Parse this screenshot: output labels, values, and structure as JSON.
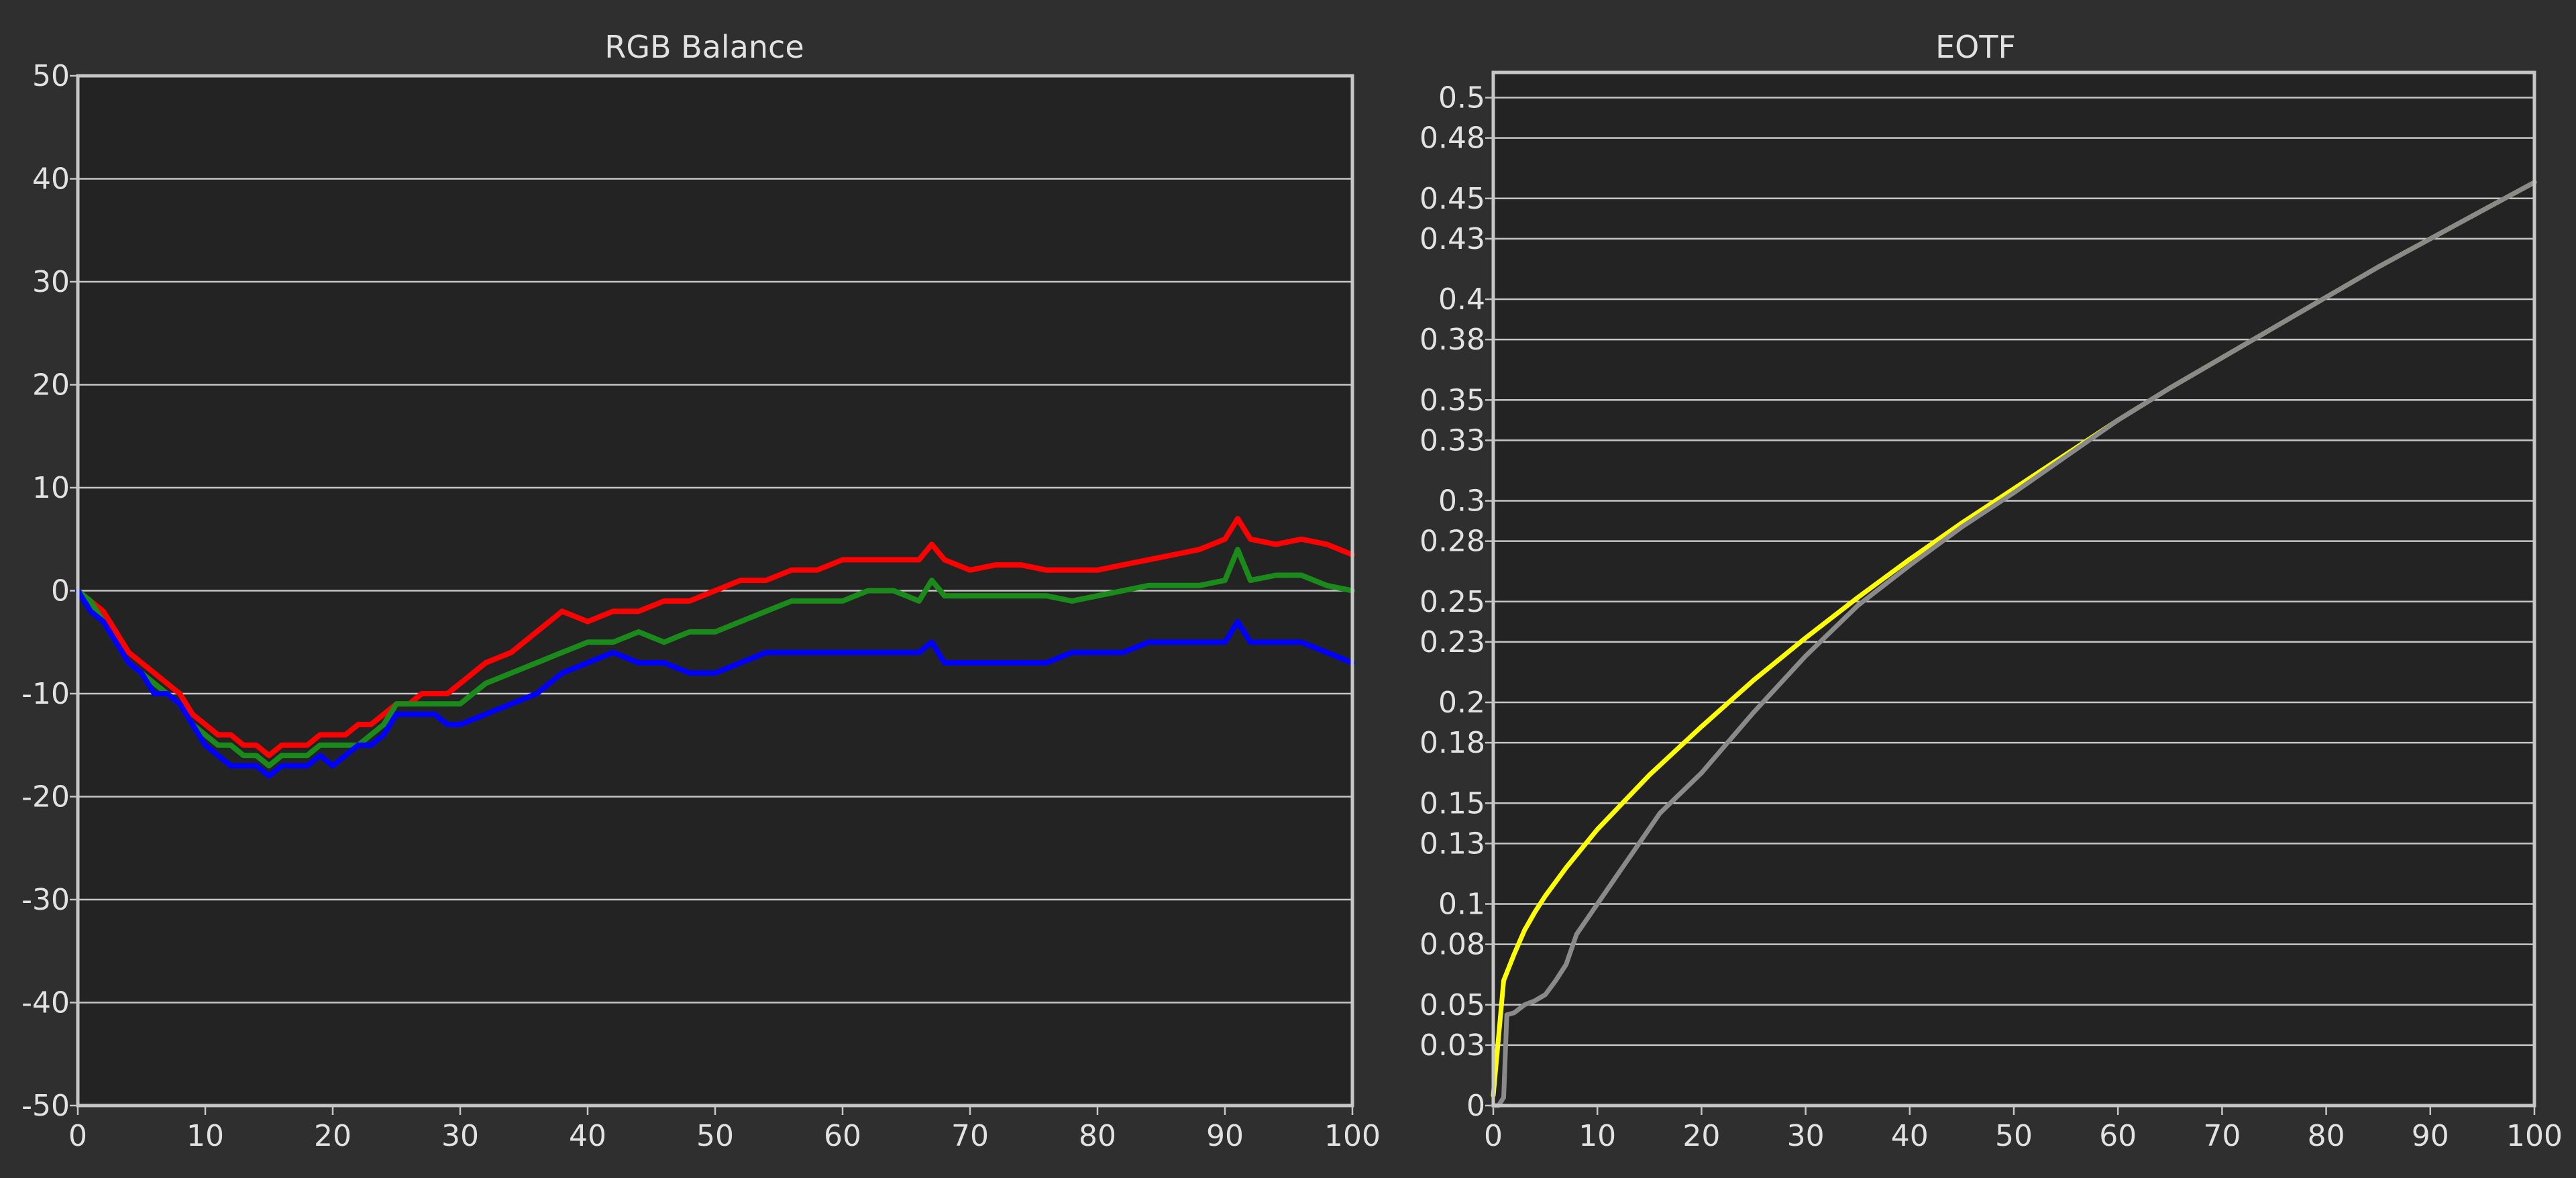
{
  "theme": {
    "background": "#2f2f2f",
    "plot_background": "#232323",
    "grid": "#c6c6c6",
    "text": "#e2e2e2"
  },
  "chart_data": [
    {
      "type": "line",
      "title": "RGB Balance",
      "xlabel": "",
      "ylabel": "",
      "xlim": [
        0,
        100
      ],
      "ylim": [
        -50,
        50
      ],
      "grid": true,
      "x_ticks": [
        0,
        10,
        20,
        30,
        40,
        50,
        60,
        70,
        80,
        90,
        100
      ],
      "y_ticks": [
        50,
        40,
        30,
        20,
        10,
        0,
        -10,
        -20,
        -30,
        -40,
        -50
      ],
      "x": [
        0,
        1,
        2,
        3,
        4,
        5,
        6,
        7,
        8,
        9,
        10,
        11,
        12,
        13,
        14,
        15,
        16,
        17,
        18,
        19,
        20,
        21,
        22,
        23,
        24,
        25,
        26,
        27,
        28,
        29,
        30,
        32,
        34,
        36,
        38,
        40,
        42,
        44,
        46,
        48,
        50,
        52,
        54,
        56,
        58,
        60,
        62,
        64,
        66,
        67,
        68,
        70,
        72,
        74,
        76,
        78,
        80,
        82,
        84,
        86,
        88,
        90,
        91,
        92,
        94,
        96,
        98,
        100
      ],
      "series": [
        {
          "color": "#ff0000",
          "values": [
            0,
            -1,
            -2,
            -4,
            -6,
            -7,
            -8,
            -9,
            -10,
            -12,
            -13,
            -14,
            -14,
            -15,
            -15,
            -16,
            -15,
            -15,
            -15,
            -14,
            -14,
            -14,
            -13,
            -13,
            -12,
            -11,
            -11,
            -10,
            -10,
            -10,
            -9,
            -7,
            -6,
            -4,
            -2,
            -3,
            -2,
            -2,
            -1,
            -1,
            0,
            1,
            1,
            2,
            2,
            3,
            3,
            3,
            3,
            4.5,
            3,
            2,
            2.5,
            2.5,
            2,
            2,
            2,
            2.5,
            3,
            3.5,
            4,
            5,
            7,
            5,
            4.5,
            5,
            4.5,
            3.5
          ]
        },
        {
          "color": "#1a8a1a",
          "values": [
            0,
            -1,
            -3,
            -5,
            -7,
            -8,
            -9,
            -10,
            -11,
            -13,
            -14,
            -15,
            -15,
            -16,
            -16,
            -17,
            -16,
            -16,
            -16,
            -15,
            -15,
            -15,
            -15,
            -14,
            -13,
            -11,
            -11,
            -11,
            -11,
            -11,
            -11,
            -9,
            -8,
            -7,
            -6,
            -5,
            -5,
            -4,
            -5,
            -4,
            -4,
            -3,
            -2,
            -1,
            -1,
            -1,
            0,
            0,
            -1,
            1,
            -0.5,
            -0.5,
            -0.5,
            -0.5,
            -0.5,
            -1,
            -0.5,
            0,
            0.5,
            0.5,
            0.5,
            1,
            4,
            1,
            1.5,
            1.5,
            0.5,
            0
          ]
        },
        {
          "color": "#0000ff",
          "values": [
            0,
            -2,
            -3,
            -5,
            -7,
            -8,
            -10,
            -10,
            -11,
            -13,
            -15,
            -16,
            -17,
            -17,
            -17,
            -18,
            -17,
            -17,
            -17,
            -16,
            -17,
            -16,
            -15,
            -15,
            -14,
            -12,
            -12,
            -12,
            -12,
            -13,
            -13,
            -12,
            -11,
            -10,
            -8,
            -7,
            -6,
            -7,
            -7,
            -8,
            -8,
            -7,
            -6,
            -6,
            -6,
            -6,
            -6,
            -6,
            -6,
            -5,
            -7,
            -7,
            -7,
            -7,
            -7,
            -6,
            -6,
            -6,
            -5,
            -5,
            -5,
            -5,
            -3,
            -5,
            -5,
            -5,
            -6,
            -7
          ]
        }
      ]
    },
    {
      "type": "line",
      "title": "EOTF",
      "xlabel": "",
      "ylabel": "",
      "xlim": [
        0,
        100
      ],
      "ylim": [
        0,
        0.5125
      ],
      "grid": true,
      "x_ticks": [
        0,
        10,
        20,
        30,
        40,
        50,
        60,
        70,
        80,
        90,
        100
      ],
      "y_ticks": [
        "0",
        "0.03",
        "0.05",
        "0.08",
        "0.1",
        "0.13",
        "0.15",
        "0.18",
        "0.2",
        "0.23",
        "0.25",
        "0.28",
        "0.3",
        "0.33",
        "0.35",
        "0.38",
        "0.4",
        "0.43",
        "0.45",
        "0.48",
        "0.5"
      ],
      "series": [
        {
          "color": "#ffff00",
          "x": [
            0,
            1,
            2,
            3,
            4,
            5,
            7,
            10,
            15,
            20,
            25,
            30,
            35,
            40,
            45,
            50,
            55,
            60,
            65,
            70,
            75,
            80,
            85,
            90,
            95,
            100
          ],
          "values": [
            0.005,
            0.062,
            0.075,
            0.087,
            0.096,
            0.104,
            0.118,
            0.137,
            0.164,
            0.188,
            0.211,
            0.232,
            0.252,
            0.271,
            0.289,
            0.306,
            0.323,
            0.34,
            0.356,
            0.371,
            0.386,
            0.401,
            0.416,
            0.43,
            0.444,
            0.458
          ]
        },
        {
          "color": "#8a8a8a",
          "x": [
            0,
            0.5,
            1,
            1.3,
            2,
            3,
            4,
            5,
            6,
            7,
            8,
            10,
            12,
            14,
            16,
            18,
            20,
            25,
            30,
            35,
            40,
            45,
            50,
            55,
            60,
            65,
            70,
            75,
            80,
            85,
            90,
            95,
            100
          ],
          "values": [
            0,
            0,
            0.004,
            0.045,
            0.046,
            0.05,
            0.052,
            0.055,
            0.062,
            0.07,
            0.085,
            0.1,
            0.115,
            0.13,
            0.145,
            0.155,
            0.165,
            0.195,
            0.223,
            0.248,
            0.268,
            0.287,
            0.304,
            0.322,
            0.34,
            0.356,
            0.371,
            0.386,
            0.401,
            0.416,
            0.43,
            0.444,
            0.458
          ]
        }
      ]
    }
  ]
}
